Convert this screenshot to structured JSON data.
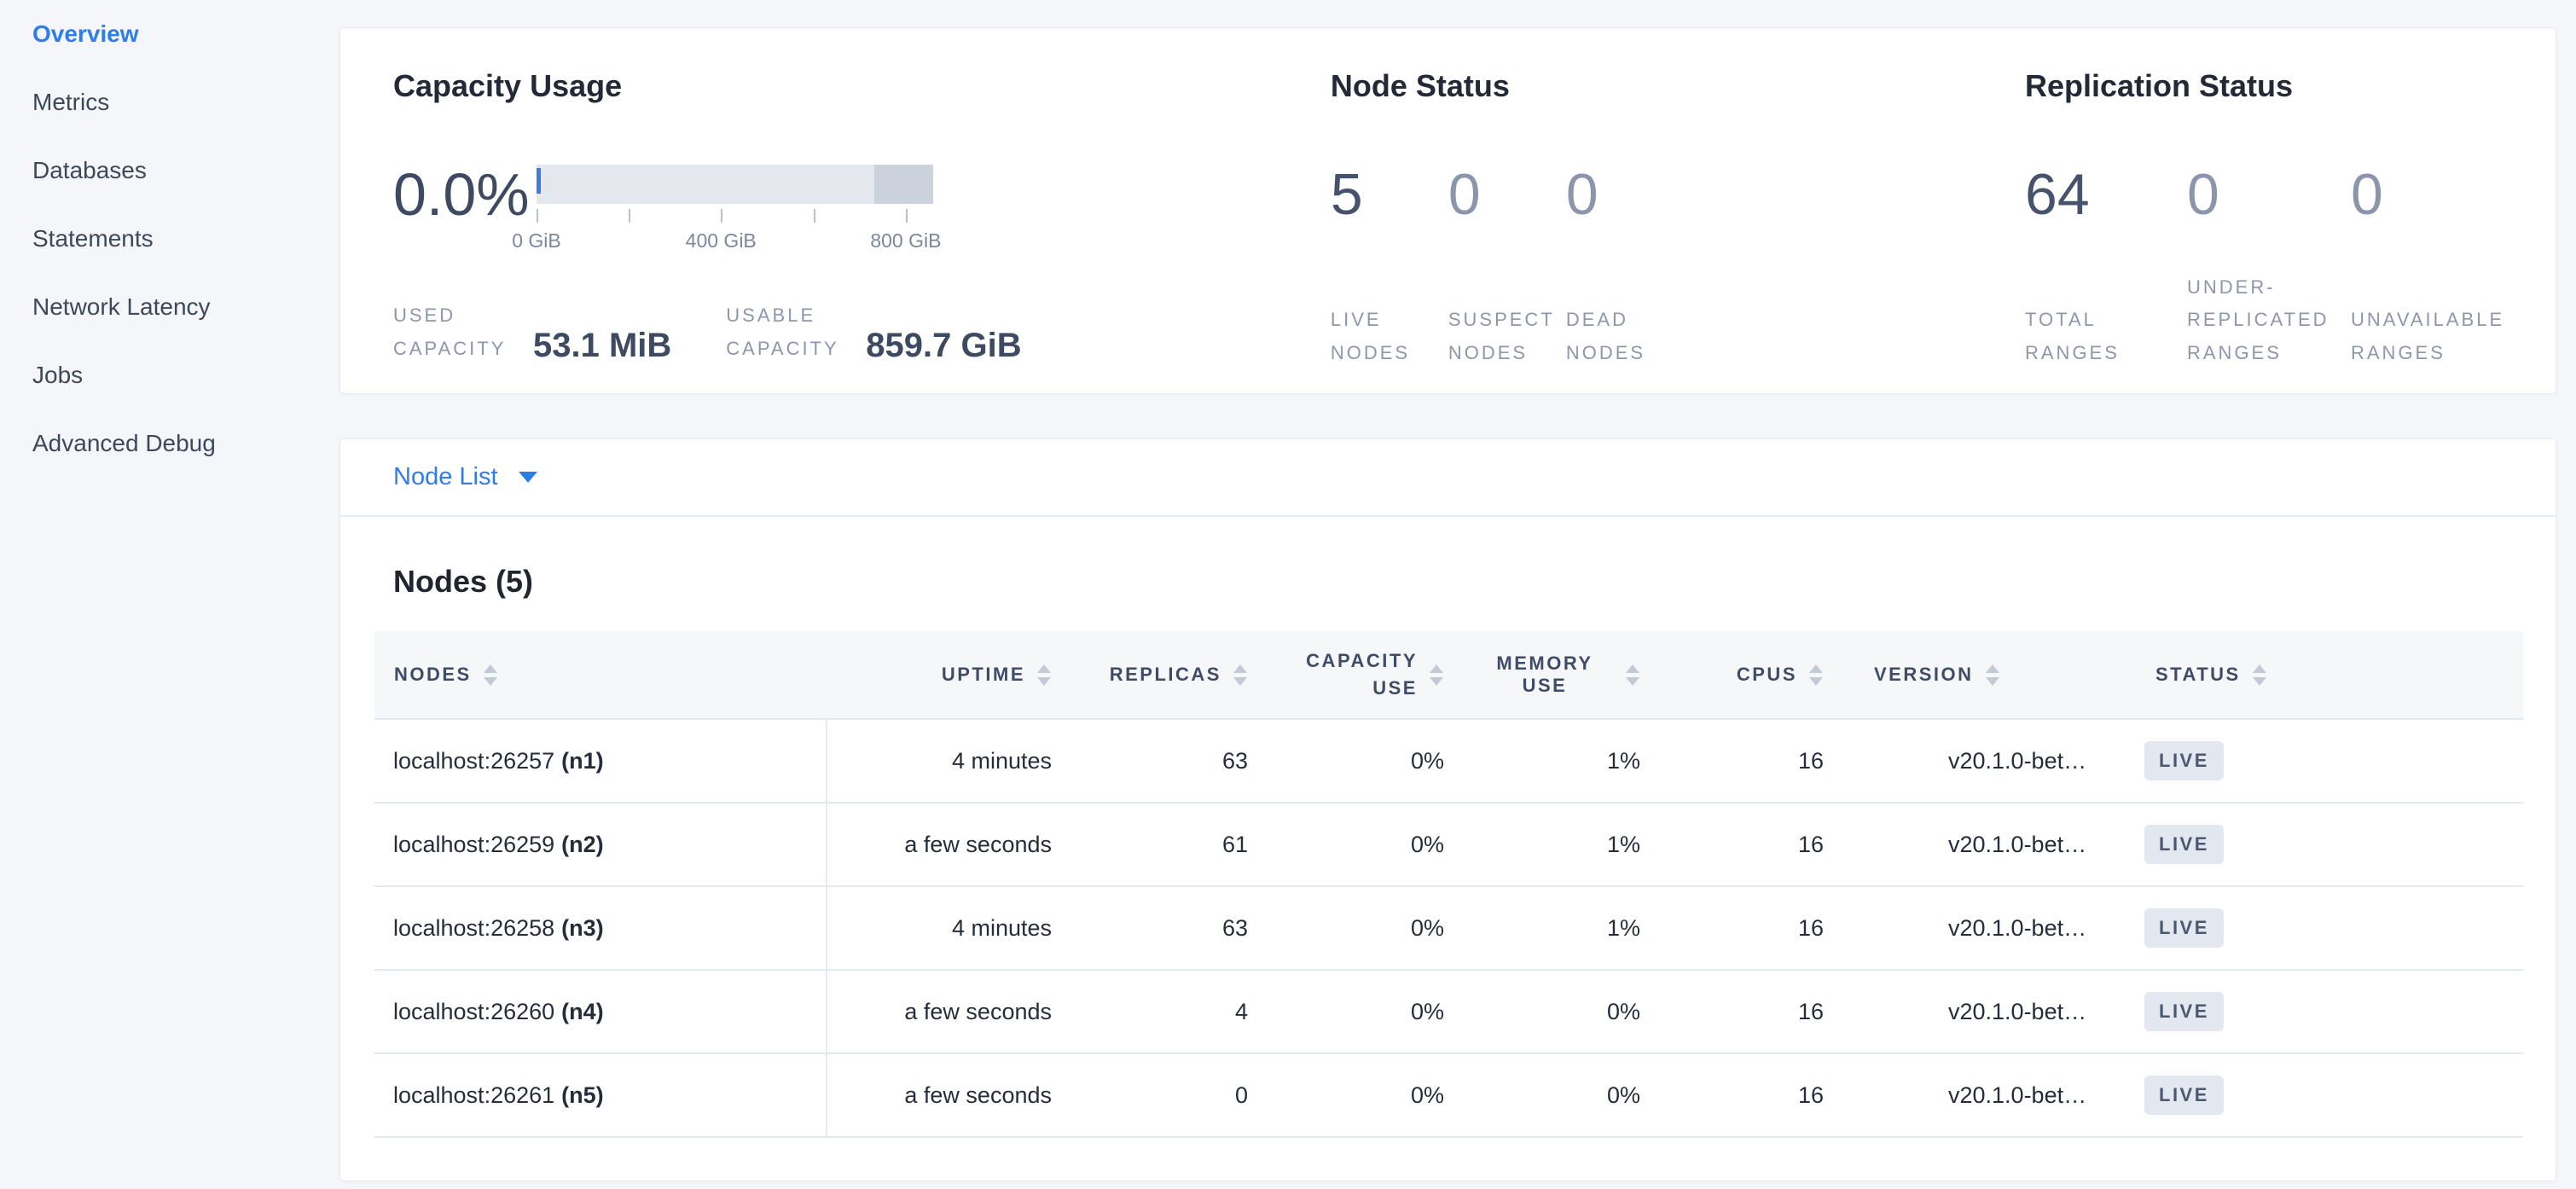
{
  "sidebar": {
    "items": [
      {
        "label": "Overview",
        "active": true
      },
      {
        "label": "Metrics",
        "active": false
      },
      {
        "label": "Databases",
        "active": false
      },
      {
        "label": "Statements",
        "active": false
      },
      {
        "label": "Network Latency",
        "active": false
      },
      {
        "label": "Jobs",
        "active": false
      },
      {
        "label": "Advanced Debug",
        "active": false
      }
    ]
  },
  "summary": {
    "capacity": {
      "title": "Capacity Usage",
      "percent": "0.0%",
      "bar": {
        "segments": [
          {
            "width_pct": 85.2,
            "color": "#e4e7ed"
          },
          {
            "width_pct": 14.8,
            "color": "#ccd2db"
          }
        ],
        "marker_color": "#3a7de0",
        "ticks": [
          {
            "pct": 0,
            "label": "0 GiB"
          },
          {
            "pct": 23.3,
            "label": ""
          },
          {
            "pct": 46.5,
            "label": "400 GiB"
          },
          {
            "pct": 69.8,
            "label": ""
          },
          {
            "pct": 93.1,
            "label": "800 GiB"
          }
        ]
      },
      "stats": [
        {
          "label": "Used Capacity",
          "value": "53.1 MiB"
        },
        {
          "label": "Usable Capacity",
          "value": "859.7 GiB"
        }
      ]
    },
    "node_status": {
      "title": "Node Status",
      "stats": [
        {
          "value": "5",
          "label": "Live Nodes",
          "emphasis": true
        },
        {
          "value": "0",
          "label": "Suspect Nodes",
          "emphasis": false
        },
        {
          "value": "0",
          "label": "Dead Nodes",
          "emphasis": false
        }
      ]
    },
    "replication": {
      "title": "Replication Status",
      "stats": [
        {
          "value": "64",
          "label": "Total Ranges",
          "emphasis": true
        },
        {
          "value": "0",
          "label": "Under-Replicated Ranges",
          "emphasis": false
        },
        {
          "value": "0",
          "label": "Unavailable Ranges",
          "emphasis": false
        }
      ]
    }
  },
  "view_selector": {
    "label": "Node List"
  },
  "nodes_table": {
    "title": "Nodes (5)",
    "columns": [
      {
        "label": "Nodes",
        "align": "l",
        "wrap": false
      },
      {
        "label": "Uptime",
        "align": "r",
        "wrap": false
      },
      {
        "label": "Replicas",
        "align": "r",
        "wrap": false
      },
      {
        "label": "Capacity Use",
        "align": "r",
        "wrap": true
      },
      {
        "label": "Memory Use",
        "align": "r",
        "wrap": false
      },
      {
        "label": "CPUs",
        "align": "r",
        "wrap": false
      },
      {
        "label": "Version",
        "align": "l",
        "wrap": false
      },
      {
        "label": "Status",
        "align": "l",
        "wrap": false
      }
    ],
    "rows": [
      {
        "address": "localhost:26257",
        "node_id": "(n1)",
        "uptime": "4 minutes",
        "replicas": "63",
        "capacity_use": "0%",
        "memory_use": "1%",
        "cpus": "16",
        "version": "v20.1.0-bet…",
        "status": "LIVE"
      },
      {
        "address": "localhost:26259",
        "node_id": "(n2)",
        "uptime": "a few seconds",
        "replicas": "61",
        "capacity_use": "0%",
        "memory_use": "1%",
        "cpus": "16",
        "version": "v20.1.0-bet…",
        "status": "LIVE"
      },
      {
        "address": "localhost:26258",
        "node_id": "(n3)",
        "uptime": "4 minutes",
        "replicas": "63",
        "capacity_use": "0%",
        "memory_use": "1%",
        "cpus": "16",
        "version": "v20.1.0-bet…",
        "status": "LIVE"
      },
      {
        "address": "localhost:26260",
        "node_id": "(n4)",
        "uptime": "a few seconds",
        "replicas": "4",
        "capacity_use": "0%",
        "memory_use": "0%",
        "cpus": "16",
        "version": "v20.1.0-bet…",
        "status": "LIVE"
      },
      {
        "address": "localhost:26261",
        "node_id": "(n5)",
        "uptime": "a few seconds",
        "replicas": "0",
        "capacity_use": "0%",
        "memory_use": "0%",
        "cpus": "16",
        "version": "v20.1.0-bet…",
        "status": "LIVE"
      }
    ]
  },
  "colors": {
    "accent_blue": "#2f7ceb",
    "badge_bg": "#e3e8f0",
    "badge_text": "#4b586f"
  }
}
